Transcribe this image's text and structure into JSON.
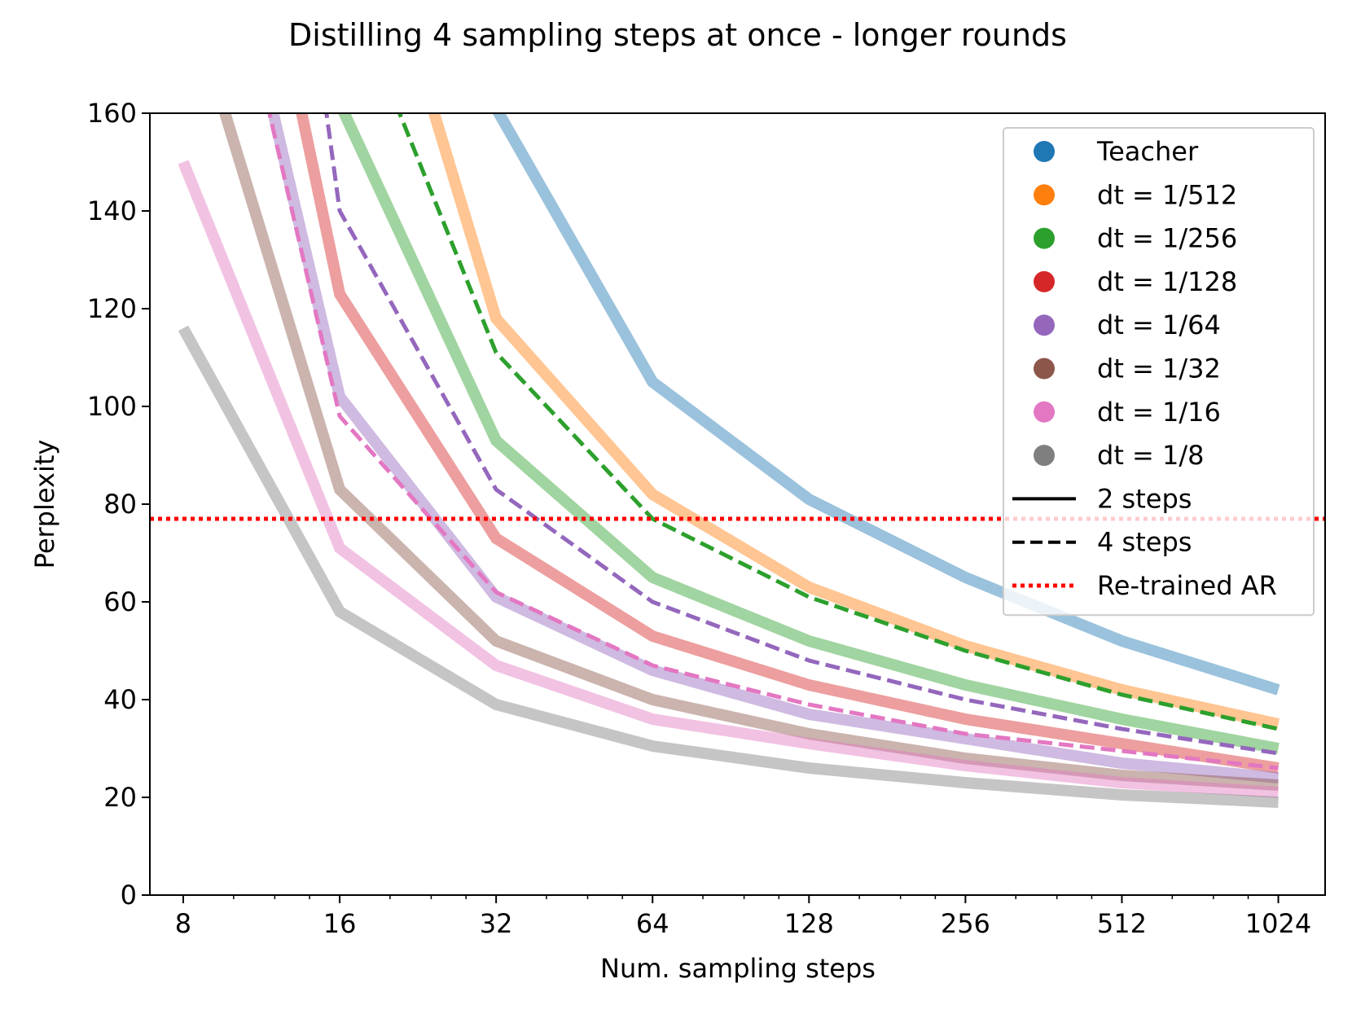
{
  "chart_data": {
    "type": "line",
    "title": "Distilling 4 sampling steps at once - longer rounds",
    "xlabel": "Num. sampling steps",
    "ylabel": "Perplexity",
    "xscale": "log2",
    "xlim": [
      6.9,
      1260
    ],
    "ylim": [
      0,
      160
    ],
    "x_ticks": [
      8,
      16,
      32,
      64,
      128,
      256,
      512,
      1024
    ],
    "x_tick_labels": [
      "8",
      "16",
      "32",
      "64",
      "128",
      "256",
      "512",
      "1024"
    ],
    "y_ticks": [
      0,
      20,
      40,
      60,
      80,
      100,
      120,
      140,
      160
    ],
    "y_tick_labels": [
      "0",
      "20",
      "40",
      "60",
      "80",
      "100",
      "120",
      "140",
      "160"
    ],
    "legend_position": "top-right",
    "reference_line": {
      "name": "Re-trained AR",
      "y": 77,
      "color": "#ff0000",
      "style": "dotted"
    },
    "series": [
      {
        "name": "Teacher 2 steps",
        "color": "#1f77b4",
        "style": "2 steps",
        "x": [
          32,
          64,
          128,
          256,
          512,
          1024
        ],
        "values": [
          161,
          105,
          81,
          65,
          52,
          42
        ]
      },
      {
        "name": "dt = 1/512 2 steps",
        "color": "#ff7f0e",
        "style": "2 steps",
        "x": [
          24,
          32,
          64,
          128,
          256,
          512,
          1024
        ],
        "values": [
          162,
          118,
          82,
          63,
          51,
          42,
          35
        ]
      },
      {
        "name": "dt = 1/256 2 steps",
        "color": "#2ca02c",
        "style": "2 steps",
        "x": [
          16,
          32,
          64,
          128,
          256,
          512,
          1024
        ],
        "values": [
          162,
          93,
          65,
          52,
          43,
          36,
          30
        ]
      },
      {
        "name": "dt = 1/128 2 steps",
        "color": "#d62728",
        "style": "2 steps",
        "x": [
          13.4,
          16,
          32,
          64,
          128,
          256,
          512,
          1024
        ],
        "values": [
          162,
          123,
          73,
          53,
          43,
          36,
          31,
          26
        ]
      },
      {
        "name": "dt = 1/64 2 steps",
        "color": "#9467bd",
        "style": "2 steps",
        "x": [
          11.8,
          16,
          32,
          64,
          128,
          256,
          512,
          1024
        ],
        "values": [
          162,
          102,
          61,
          46,
          37,
          32,
          27,
          24
        ]
      },
      {
        "name": "dt = 1/32 2 steps",
        "color": "#8c564b",
        "style": "2 steps",
        "x": [
          9.5,
          16,
          32,
          64,
          128,
          256,
          512,
          1024
        ],
        "values": [
          162,
          83,
          52,
          40,
          33,
          28,
          24.5,
          22.5
        ]
      },
      {
        "name": "dt = 1/16 2 steps",
        "color": "#e377c2",
        "style": "2 steps",
        "x": [
          8,
          16,
          32,
          64,
          128,
          256,
          512,
          1024
        ],
        "values": [
          150,
          71,
          47,
          36,
          31,
          26.5,
          23,
          21
        ]
      },
      {
        "name": "dt = 1/8 2 steps",
        "color": "#7f7f7f",
        "style": "2 steps",
        "x": [
          8,
          16,
          32,
          64,
          128,
          256,
          512,
          1024
        ],
        "values": [
          116,
          58,
          39,
          30.5,
          26,
          23,
          20.5,
          19
        ]
      },
      {
        "name": "dt = 1/256 4 steps",
        "color": "#2ca02c",
        "style": "4 steps",
        "x": [
          20.5,
          32,
          64,
          128,
          256,
          512,
          1024
        ],
        "values": [
          162,
          111,
          77,
          61,
          50,
          41,
          34
        ]
      },
      {
        "name": "dt = 1/64 4 steps",
        "color": "#9467bd",
        "style": "4 steps",
        "x": [
          15,
          16,
          32,
          64,
          128,
          256,
          512,
          1024
        ],
        "values": [
          162,
          140,
          83,
          60,
          48,
          40,
          34,
          29
        ]
      },
      {
        "name": "dt = 1/16 4 steps",
        "color": "#e377c2",
        "style": "4 steps",
        "x": [
          11.6,
          16,
          32,
          64,
          128,
          256,
          512,
          1024
        ],
        "values": [
          162,
          98,
          62,
          47,
          39,
          33,
          29.5,
          26
        ]
      }
    ],
    "legend": [
      {
        "label": "Teacher",
        "kind": "marker",
        "color": "#1f77b4"
      },
      {
        "label": "dt = 1/512",
        "kind": "marker",
        "color": "#ff7f0e"
      },
      {
        "label": "dt = 1/256",
        "kind": "marker",
        "color": "#2ca02c"
      },
      {
        "label": "dt = 1/128",
        "kind": "marker",
        "color": "#d62728"
      },
      {
        "label": "dt = 1/64",
        "kind": "marker",
        "color": "#9467bd"
      },
      {
        "label": "dt = 1/32",
        "kind": "marker",
        "color": "#8c564b"
      },
      {
        "label": "dt = 1/16",
        "kind": "marker",
        "color": "#e377c2"
      },
      {
        "label": "dt = 1/8",
        "kind": "marker",
        "color": "#7f7f7f"
      },
      {
        "label": "2 steps",
        "kind": "solid",
        "color": "#000000"
      },
      {
        "label": "4 steps",
        "kind": "dashed",
        "color": "#000000"
      },
      {
        "label": "Re-trained AR",
        "kind": "dotted",
        "color": "#ff0000"
      }
    ]
  }
}
